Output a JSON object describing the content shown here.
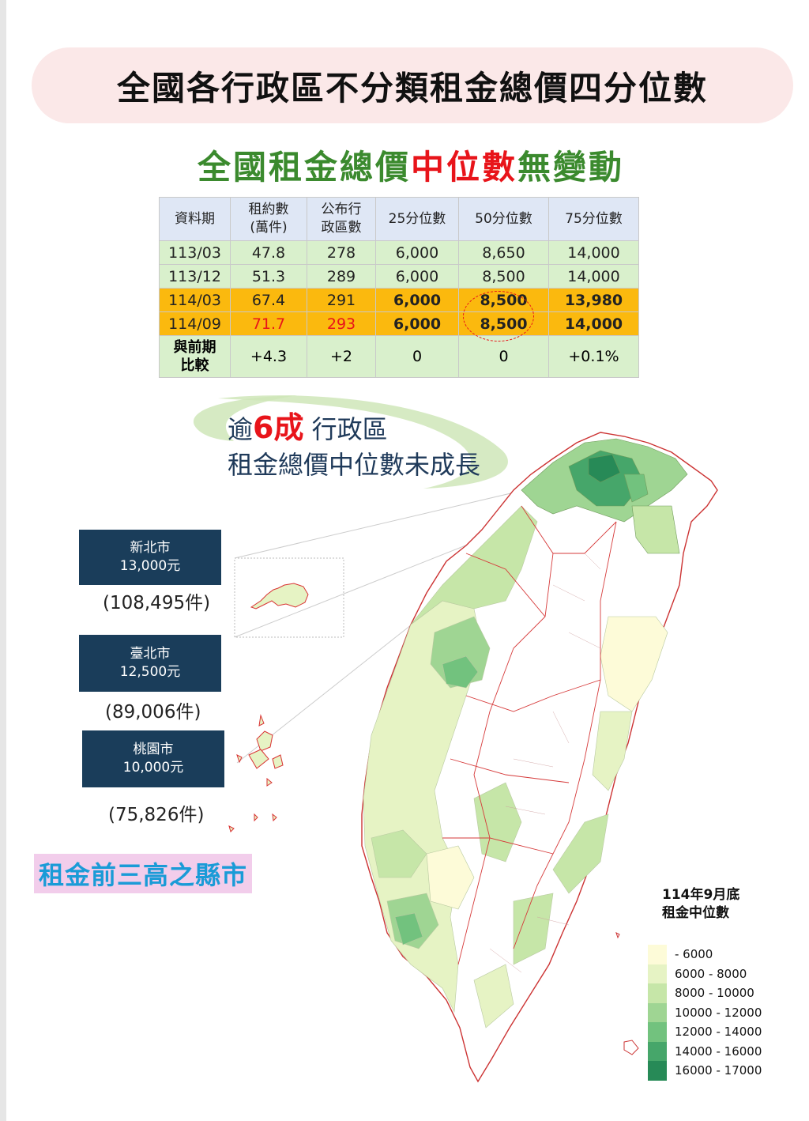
{
  "title": "全國各行政區不分類租金總價四分位數",
  "subtitle": {
    "part1": "全國租金總價",
    "part2": "中位數",
    "part3": "無變動"
  },
  "table": {
    "headers": [
      "資料期",
      "租約數\n(萬件)",
      "公布行\n政區數",
      "25分位數",
      "50分位數",
      "75分位數"
    ],
    "rows": [
      {
        "period": "113/03",
        "contracts": "47.8",
        "districts": "278",
        "q25": "6,000",
        "q50": "8,650",
        "q75": "14,000",
        "style": "green"
      },
      {
        "period": "113/12",
        "contracts": "51.3",
        "districts": "289",
        "q25": "6,000",
        "q50": "8,500",
        "q75": "14,000",
        "style": "green"
      },
      {
        "period": "114/03",
        "contracts": "67.4",
        "districts": "291",
        "q25": "6,000",
        "q50": "8,500",
        "q75": "13,980",
        "style": "orange"
      },
      {
        "period": "114/09",
        "contracts": "71.7",
        "districts": "293",
        "q25": "6,000",
        "q50": "8,500",
        "q75": "14,000",
        "style": "orange"
      }
    ],
    "diff": {
      "label": "與前期\n比較",
      "contracts": "+4.3",
      "districts": "+2",
      "q25": "0",
      "q50": "0",
      "q75": "+0.1%"
    }
  },
  "note": {
    "prefix": "逾",
    "big": "6成",
    "suffix": " 行政區",
    "line2": "租金總價中位數未成長"
  },
  "cities": [
    {
      "name": "新北市",
      "value": "13,000元",
      "count": "(108,495件)"
    },
    {
      "name": "臺北市",
      "value": "12,500元",
      "count": "(89,006件)"
    },
    {
      "name": "桃園市",
      "value": "10,000元",
      "count": "(75,826件)"
    }
  ],
  "top3_label": "租金前三高之縣市",
  "legend": {
    "title": "114年9月底\n租金中位數",
    "items": [
      {
        "label": "- 6000",
        "color": "#fdfbd8"
      },
      {
        "label": "6000 - 8000",
        "color": "#e6f3c4"
      },
      {
        "label": "8000 - 10000",
        "color": "#c6e6a8"
      },
      {
        "label": "10000 - 12000",
        "color": "#9fd593"
      },
      {
        "label": "12000 - 14000",
        "color": "#72c27e"
      },
      {
        "label": "14000 - 16000",
        "color": "#46a66a"
      },
      {
        "label": "16000 - 17000",
        "color": "#278a57"
      }
    ]
  },
  "colors": {
    "highlight_red": "#e8141a",
    "green_text": "#3b8a2e",
    "navy": "#1a3d5a",
    "orange_row": "#fbb90e",
    "green_row": "#d9f0cc"
  }
}
